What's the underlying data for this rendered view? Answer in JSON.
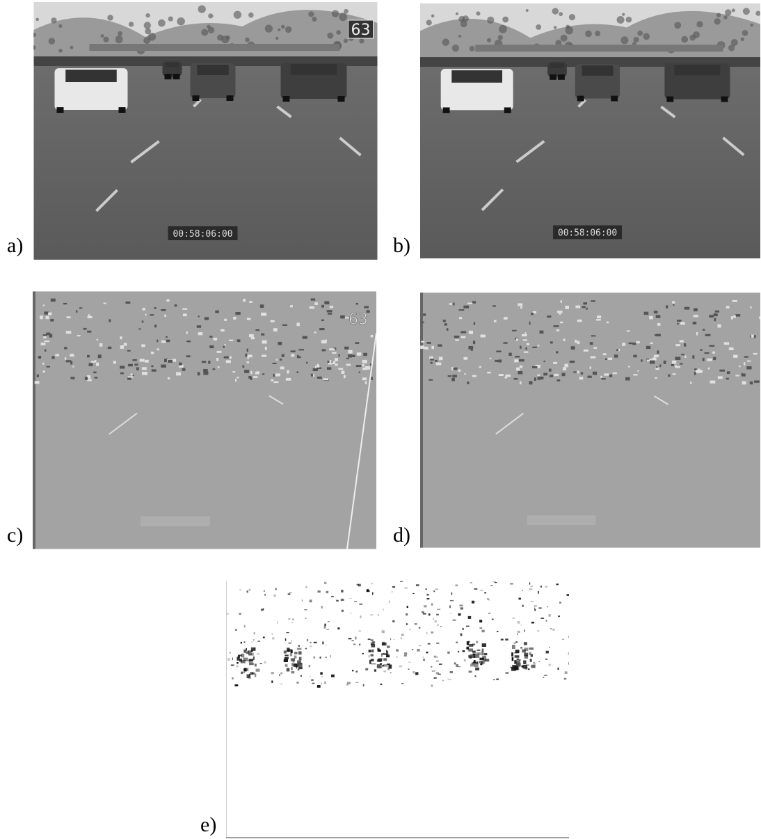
{
  "figure": {
    "panels": [
      {
        "label": "a)",
        "sign": "63",
        "timecode": "00:58:06:00"
      },
      {
        "label": "b)",
        "timecode": "00:58:06:00"
      },
      {
        "label": "c)",
        "sign": "63"
      },
      {
        "label": "d)"
      },
      {
        "label": "e)"
      }
    ]
  }
}
